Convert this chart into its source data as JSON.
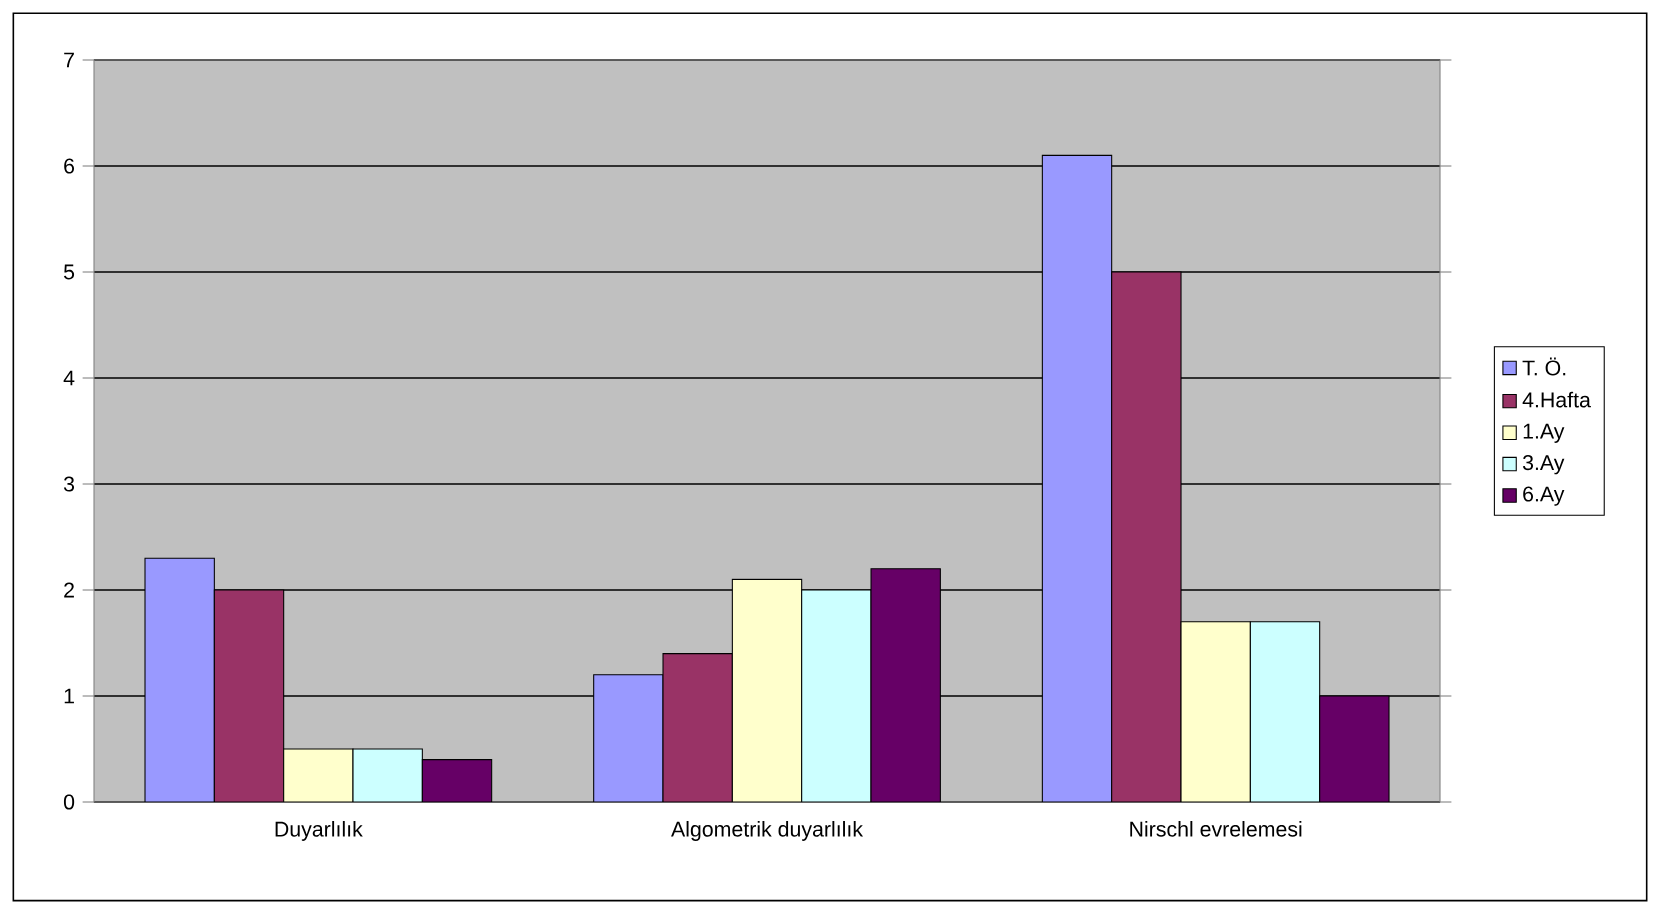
{
  "chart_data": {
    "type": "bar",
    "categories": [
      "Duyarlılık",
      "Algometrik duyarlılık",
      "Nirschl evrelemesi"
    ],
    "series": [
      {
        "name": "T. Ö.",
        "color": "#9999ff",
        "values": [
          2.3,
          1.2,
          6.1
        ]
      },
      {
        "name": "4.Hafta",
        "color": "#993366",
        "values": [
          2.0,
          1.4,
          5.0
        ]
      },
      {
        "name": "1.Ay",
        "color": "#ffffcc",
        "values": [
          0.5,
          2.1,
          1.7
        ]
      },
      {
        "name": "3.Ay",
        "color": "#ccffff",
        "values": [
          0.5,
          2.0,
          1.7
        ]
      },
      {
        "name": "6.Ay",
        "color": "#660066",
        "values": [
          0.4,
          2.2,
          1.0
        ]
      }
    ],
    "ylim": [
      0,
      7
    ],
    "yticks": [
      0,
      1,
      2,
      3,
      4,
      5,
      6,
      7
    ],
    "grid": "y",
    "legend": "right"
  }
}
